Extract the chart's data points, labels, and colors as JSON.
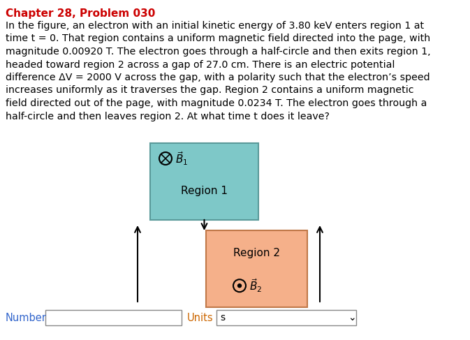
{
  "title": "Chapter 28, Problem 030",
  "title_color": "#cc0000",
  "body_lines": [
    "In the figure, an electron with an initial kinetic energy of 3.80 keV enters region 1 at",
    "time t = 0. That region contains a uniform magnetic field directed into the page, with",
    "magnitude 0.00920 T. The electron goes through a half-circle and then exits region 1,",
    "headed toward region 2 across a gap of 27.0 cm. There is an electric potential",
    "difference ΔV = 2000 V across the gap, with a polarity such that the electron’s speed",
    "increases uniformly as it traverses the gap. Region 2 contains a uniform magnetic",
    "field directed out of the page, with magnitude 0.0234 T. The electron goes through a",
    "half-circle and then leaves region 2. At what time t does it leave?"
  ],
  "region1_color": "#7ec8c8",
  "region1_edge": "#5a9a9a",
  "region2_color": "#f5b08a",
  "region2_edge": "#c07848",
  "bg_color": "#ffffff",
  "text_color": "#000000",
  "blue_text_color": "#3366cc",
  "number_label": "Number",
  "number_label_color": "#3366cc",
  "units_label": "Units",
  "units_label_color": "#cc6600",
  "units_value": "s",
  "title_fontsize": 11,
  "body_fontsize": 10.5,
  "fig_width": 6.73,
  "fig_height": 4.87
}
